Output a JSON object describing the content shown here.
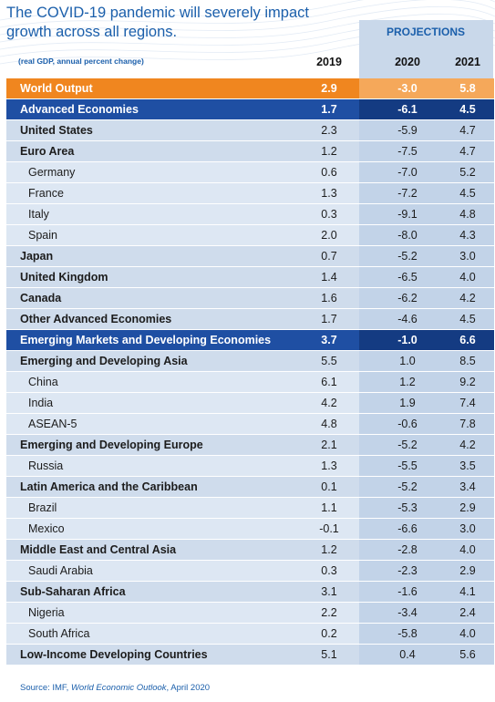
{
  "header": {
    "title_line1": "The COVID-19 pandemic will severely impact",
    "title_line2": "growth across all regions.",
    "projections_label": "PROJECTIONS",
    "units_label": "(real GDP, annual percent change)",
    "years": [
      "2019",
      "2020",
      "2021"
    ]
  },
  "colors": {
    "title_blue": "#1b5fab",
    "world_orange": "#f0861f",
    "highlight_blue": "#1f4fa3",
    "row_light": "#cfdcec"
  },
  "source": {
    "prefix": "Source: IMF, ",
    "publication": "World Economic Outlook",
    "suffix": ", April 2020"
  },
  "chart_data": {
    "type": "table",
    "columns": [
      "2019",
      "2020",
      "2021"
    ],
    "projection_columns": [
      "2020",
      "2021"
    ],
    "rows": [
      {
        "name": "World Output",
        "values": [
          "2.9",
          "-3.0",
          "5.8"
        ],
        "style": "world"
      },
      {
        "name": "Advanced Economies",
        "values": [
          "1.7",
          "-6.1",
          "4.5"
        ],
        "style": "adv"
      },
      {
        "name": "United States",
        "values": [
          "2.3",
          "-5.9",
          "4.7"
        ],
        "style": "group"
      },
      {
        "name": "Euro Area",
        "values": [
          "1.2",
          "-7.5",
          "4.7"
        ],
        "style": "group"
      },
      {
        "name": "Germany",
        "values": [
          "0.6",
          "-7.0",
          "5.2"
        ],
        "style": "sub"
      },
      {
        "name": "France",
        "values": [
          "1.3",
          "-7.2",
          "4.5"
        ],
        "style": "sub"
      },
      {
        "name": "Italy",
        "values": [
          "0.3",
          "-9.1",
          "4.8"
        ],
        "style": "sub"
      },
      {
        "name": "Spain",
        "values": [
          "2.0",
          "-8.0",
          "4.3"
        ],
        "style": "sub"
      },
      {
        "name": "Japan",
        "values": [
          "0.7",
          "-5.2",
          "3.0"
        ],
        "style": "group"
      },
      {
        "name": "United Kingdom",
        "values": [
          "1.4",
          "-6.5",
          "4.0"
        ],
        "style": "group"
      },
      {
        "name": "Canada",
        "values": [
          "1.6",
          "-6.2",
          "4.2"
        ],
        "style": "group"
      },
      {
        "name": "Other Advanced Economies",
        "values": [
          "1.7",
          "-4.6",
          "4.5"
        ],
        "style": "group"
      },
      {
        "name": "Emerging Markets and Developing Economies",
        "values": [
          "3.7",
          "-1.0",
          "6.6"
        ],
        "style": "adv"
      },
      {
        "name": "Emerging and Developing Asia",
        "values": [
          "5.5",
          "1.0",
          "8.5"
        ],
        "style": "group"
      },
      {
        "name": "China",
        "values": [
          "6.1",
          "1.2",
          "9.2"
        ],
        "style": "sub"
      },
      {
        "name": "India",
        "values": [
          "4.2",
          "1.9",
          "7.4"
        ],
        "style": "sub"
      },
      {
        "name": "ASEAN-5",
        "values": [
          "4.8",
          "-0.6",
          "7.8"
        ],
        "style": "sub"
      },
      {
        "name": "Emerging and Developing Europe",
        "values": [
          "2.1",
          "-5.2",
          "4.2"
        ],
        "style": "group"
      },
      {
        "name": "Russia",
        "values": [
          "1.3",
          "-5.5",
          "3.5"
        ],
        "style": "sub"
      },
      {
        "name": "Latin America and the Caribbean",
        "values": [
          "0.1",
          "-5.2",
          "3.4"
        ],
        "style": "group"
      },
      {
        "name": "Brazil",
        "values": [
          "1.1",
          "-5.3",
          "2.9"
        ],
        "style": "sub"
      },
      {
        "name": "Mexico",
        "values": [
          "-0.1",
          "-6.6",
          "3.0"
        ],
        "style": "sub"
      },
      {
        "name": "Middle East and Central Asia",
        "values": [
          "1.2",
          "-2.8",
          "4.0"
        ],
        "style": "group"
      },
      {
        "name": "Saudi Arabia",
        "values": [
          "0.3",
          "-2.3",
          "2.9"
        ],
        "style": "sub"
      },
      {
        "name": "Sub-Saharan Africa",
        "values": [
          "3.1",
          "-1.6",
          "4.1"
        ],
        "style": "group"
      },
      {
        "name": "Nigeria",
        "values": [
          "2.2",
          "-3.4",
          "2.4"
        ],
        "style": "sub"
      },
      {
        "name": "South Africa",
        "values": [
          "0.2",
          "-5.8",
          "4.0"
        ],
        "style": "sub"
      },
      {
        "name": "Low-Income Developing Countries",
        "values": [
          "5.1",
          "0.4",
          "5.6"
        ],
        "style": "group"
      }
    ]
  }
}
